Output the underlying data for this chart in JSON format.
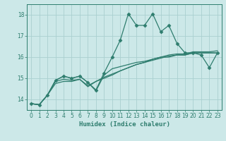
{
  "xlabel": "Humidex (Indice chaleur)",
  "xlim": [
    -0.5,
    23.5
  ],
  "ylim": [
    13.5,
    18.5
  ],
  "yticks": [
    14,
    15,
    16,
    17,
    18
  ],
  "xticks": [
    0,
    1,
    2,
    3,
    4,
    5,
    6,
    7,
    8,
    9,
    10,
    11,
    12,
    13,
    14,
    15,
    16,
    17,
    18,
    19,
    20,
    21,
    22,
    23
  ],
  "bg_color": "#cce8e8",
  "line_color": "#2e7d6e",
  "grid_color": "#aad0d0",
  "series": [
    {
      "x": [
        0,
        1,
        2,
        3,
        4,
        5,
        6,
        7,
        8,
        9,
        10,
        11,
        12,
        13,
        14,
        15,
        16,
        17,
        18,
        19,
        20,
        21,
        22,
        23
      ],
      "y": [
        13.8,
        13.75,
        14.2,
        14.9,
        15.1,
        15.0,
        15.1,
        14.8,
        14.45,
        15.25,
        16.0,
        16.8,
        18.05,
        17.5,
        17.5,
        18.05,
        17.2,
        17.5,
        16.65,
        16.2,
        16.2,
        16.1,
        15.5,
        16.2
      ],
      "marker": "D",
      "markersize": 2.5,
      "lw": 0.9
    },
    {
      "x": [
        0,
        1,
        2,
        3,
        4,
        5,
        6,
        7,
        8,
        9,
        10,
        11,
        12,
        13,
        14,
        15,
        16,
        17,
        18,
        19,
        20,
        21,
        22,
        23
      ],
      "y": [
        13.8,
        13.75,
        14.2,
        14.85,
        14.95,
        14.9,
        14.95,
        14.6,
        14.85,
        15.05,
        15.2,
        15.35,
        15.5,
        15.65,
        15.75,
        15.85,
        15.95,
        16.05,
        16.1,
        16.1,
        16.2,
        16.2,
        16.2,
        16.2
      ],
      "marker": null,
      "markersize": 0,
      "lw": 0.9
    },
    {
      "x": [
        0,
        1,
        2,
        3,
        4,
        5,
        6,
        7,
        8,
        9,
        10,
        11,
        12,
        13,
        14,
        15,
        16,
        17,
        18,
        19,
        20,
        21,
        22,
        23
      ],
      "y": [
        13.8,
        13.75,
        14.2,
        14.75,
        14.85,
        14.85,
        14.95,
        14.65,
        14.85,
        15.0,
        15.15,
        15.35,
        15.5,
        15.65,
        15.75,
        15.9,
        16.0,
        16.1,
        16.15,
        16.15,
        16.25,
        16.25,
        16.25,
        16.3
      ],
      "marker": null,
      "markersize": 0,
      "lw": 0.9
    },
    {
      "x": [
        0,
        1,
        2,
        3,
        4,
        5,
        6,
        7,
        8,
        9,
        10,
        11,
        12,
        13,
        14,
        15,
        16,
        17,
        18,
        19,
        20,
        21,
        22,
        23
      ],
      "y": [
        13.8,
        13.75,
        14.2,
        14.9,
        15.1,
        15.0,
        15.1,
        14.8,
        14.4,
        15.15,
        15.45,
        15.55,
        15.65,
        15.75,
        15.8,
        15.9,
        16.0,
        16.0,
        16.1,
        16.1,
        16.2,
        16.2,
        16.2,
        16.2
      ],
      "marker": null,
      "markersize": 0,
      "lw": 0.9
    }
  ]
}
